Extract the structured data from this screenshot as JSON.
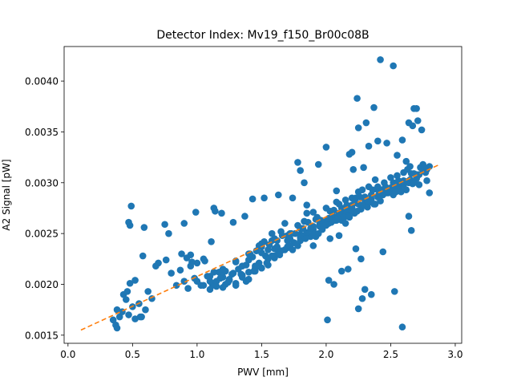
{
  "chart_data": {
    "type": "scatter",
    "title": "Detector Index: Mv19_f150_Br00c08B",
    "xlabel": "PWV [mm]",
    "ylabel": "A2 Signal [pW]",
    "xlim": [
      -0.03,
      3.05
    ],
    "ylim": [
      0.00142,
      0.00434
    ],
    "xticks": [
      0.0,
      0.5,
      1.0,
      1.5,
      2.0,
      2.5,
      3.0
    ],
    "xtick_labels": [
      "0.0",
      "0.5",
      "1.0",
      "1.5",
      "2.0",
      "2.5",
      "3.0"
    ],
    "yticks": [
      0.0015,
      0.002,
      0.0025,
      0.003,
      0.0035,
      0.004
    ],
    "ytick_labels": [
      "0.0015",
      "0.0020",
      "0.0025",
      "0.0030",
      "0.0035",
      "0.0040"
    ],
    "colors": {
      "points": "#1f77b4",
      "fit": "#ff7f0e"
    },
    "series": [
      {
        "name": "data",
        "x": [
          0.35,
          0.37,
          0.38,
          0.4,
          0.43,
          0.45,
          0.47,
          0.48,
          0.5,
          0.52,
          0.55,
          0.57,
          0.6,
          0.62,
          0.65,
          0.68,
          0.38,
          0.42,
          0.46,
          0.52,
          0.56,
          0.48,
          0.49,
          0.59,
          0.7,
          0.76,
          0.8,
          0.84,
          0.87,
          0.9,
          0.93,
          0.95,
          0.98,
          1.0,
          1.03,
          1.05,
          1.08,
          1.1,
          1.12,
          1.15,
          1.17,
          1.2,
          1.22,
          1.25,
          1.27,
          1.3,
          1.32,
          1.35,
          1.38,
          1.4,
          1.43,
          1.45,
          1.48,
          1.5,
          1.53,
          1.55,
          1.58,
          1.6,
          1.63,
          1.65,
          1.68,
          1.7,
          1.73,
          1.75,
          1.78,
          1.8,
          1.83,
          1.85,
          1.88,
          1.9,
          1.93,
          1.95,
          1.98,
          2.0,
          2.03,
          2.05,
          2.08,
          2.1,
          2.13,
          2.15,
          2.18,
          2.2,
          2.23,
          2.25,
          2.28,
          2.3,
          2.33,
          2.35,
          2.38,
          2.4,
          2.43,
          2.45,
          2.48,
          2.5,
          2.53,
          2.55,
          2.58,
          2.6,
          2.63,
          2.65,
          2.68,
          2.7,
          2.73,
          2.75,
          2.78,
          2.8,
          0.88,
          0.92,
          0.96,
          1.06,
          1.13,
          1.22,
          1.35,
          1.45,
          1.55,
          1.68,
          1.78,
          1.92,
          2.02,
          2.12,
          2.22,
          2.32,
          2.42,
          2.52,
          2.62,
          2.72,
          1.1,
          1.2,
          1.3,
          1.4,
          1.5,
          1.6,
          1.7,
          1.8,
          1.9,
          2.0,
          2.1,
          2.2,
          2.3,
          2.4,
          2.5,
          2.6,
          2.7,
          1.15,
          1.25,
          1.35,
          1.45,
          1.55,
          1.65,
          1.75,
          1.85,
          1.95,
          2.05,
          2.15,
          2.25,
          2.35,
          2.45,
          2.55,
          2.65,
          2.75,
          1.2,
          1.3,
          1.4,
          1.5,
          1.6,
          1.7,
          1.8,
          1.9,
          2.0,
          2.1,
          2.2,
          2.3,
          2.4,
          2.5,
          2.6,
          1.0,
          1.1,
          1.2,
          1.3,
          1.4,
          1.5,
          1.6,
          1.7,
          1.8,
          1.9,
          2.0,
          2.1,
          2.2,
          2.3,
          2.4,
          2.5,
          2.6,
          2.7,
          1.05,
          1.18,
          1.28,
          1.38,
          1.48,
          1.58,
          1.72,
          1.82,
          1.97,
          2.07,
          2.17,
          2.27,
          2.37,
          2.47,
          2.57,
          2.67,
          2.77,
          1.24,
          1.34,
          1.44,
          1.54,
          1.64,
          1.74,
          1.84,
          1.94,
          2.04,
          2.14,
          2.24,
          2.34,
          2.44,
          2.54,
          2.64,
          0.47,
          0.58,
          0.75,
          0.78,
          0.9,
          0.95,
          0.99,
          1.11,
          1.13,
          1.14,
          1.19,
          1.28,
          1.37,
          1.41,
          1.43,
          1.52,
          1.58,
          1.63,
          1.74,
          1.78,
          1.8,
          1.83,
          1.85,
          1.9,
          1.94,
          2.0,
          2.03,
          2.08,
          2.1,
          2.15,
          2.18,
          2.2,
          2.21,
          2.24,
          2.25,
          2.29,
          2.31,
          2.33,
          2.37,
          2.4,
          2.42,
          2.47,
          2.52,
          2.55,
          2.59,
          2.62,
          2.64,
          2.67,
          2.68,
          2.7,
          2.71,
          2.74,
          2.8,
          2.02,
          2.06,
          2.12,
          2.17,
          2.25,
          2.3,
          2.35,
          2.28,
          2.53,
          2.59,
          2.64,
          2.01,
          2.27,
          2.44,
          2.66,
          2.23,
          1.5,
          1.62,
          1.72,
          1.88,
          1.98,
          2.08,
          2.18,
          2.28,
          2.38,
          2.48,
          2.58,
          2.68,
          2.78,
          1.52,
          1.62,
          1.72,
          1.82,
          1.92,
          2.02,
          2.12,
          2.22,
          2.32,
          2.42,
          2.52,
          2.62,
          2.72,
          1.46,
          1.56,
          1.66,
          1.76,
          1.86,
          1.96,
          2.06,
          2.16,
          2.26,
          2.36,
          2.46,
          2.56,
          2.66,
          2.76
        ],
        "y": [
          0.00165,
          0.0016,
          0.00175,
          0.00168,
          0.0019,
          0.00185,
          0.0017,
          0.00201,
          0.00178,
          0.00204,
          0.00181,
          0.00168,
          0.00175,
          0.00193,
          0.00186,
          0.00218,
          0.00157,
          0.00173,
          0.00193,
          0.00166,
          0.00168,
          0.00258,
          0.00277,
          0.00256,
          0.00221,
          0.00224,
          0.00211,
          0.00199,
          0.00214,
          0.00203,
          0.00196,
          0.00218,
          0.00206,
          0.00221,
          0.00199,
          0.00225,
          0.00208,
          0.00195,
          0.00199,
          0.00203,
          0.00212,
          0.00207,
          0.00213,
          0.00205,
          0.0021,
          0.00222,
          0.00215,
          0.00218,
          0.00203,
          0.0023,
          0.00227,
          0.00216,
          0.00238,
          0.00237,
          0.00228,
          0.00234,
          0.0025,
          0.00245,
          0.00231,
          0.00252,
          0.0026,
          0.00248,
          0.0025,
          0.00241,
          0.00258,
          0.00249,
          0.00262,
          0.0027,
          0.00247,
          0.00271,
          0.00266,
          0.00259,
          0.0026,
          0.00275,
          0.00272,
          0.00268,
          0.00281,
          0.00279,
          0.0027,
          0.00283,
          0.00274,
          0.00285,
          0.00285,
          0.00291,
          0.00293,
          0.00286,
          0.00296,
          0.00288,
          0.00303,
          0.00296,
          0.00293,
          0.003,
          0.00291,
          0.00305,
          0.00297,
          0.00307,
          0.003,
          0.0031,
          0.00313,
          0.00316,
          0.00309,
          0.00304,
          0.00315,
          0.00318,
          0.00313,
          0.00316,
          0.0023,
          0.00226,
          0.00222,
          0.00223,
          0.00212,
          0.002,
          0.00207,
          0.00218,
          0.00225,
          0.00234,
          0.00238,
          0.00247,
          0.0026,
          0.00263,
          0.0027,
          0.00276,
          0.00282,
          0.00288,
          0.00293,
          0.00298,
          0.00203,
          0.00197,
          0.00201,
          0.00212,
          0.00216,
          0.00228,
          0.00237,
          0.00246,
          0.00254,
          0.00262,
          0.00268,
          0.00275,
          0.00283,
          0.00287,
          0.00293,
          0.00302,
          0.00308,
          0.00198,
          0.00204,
          0.00209,
          0.00213,
          0.00219,
          0.00233,
          0.00241,
          0.00251,
          0.00257,
          0.00266,
          0.00273,
          0.00279,
          0.00284,
          0.0029,
          0.00296,
          0.00303,
          0.00312,
          0.00212,
          0.00199,
          0.00205,
          0.00216,
          0.00226,
          0.00236,
          0.00243,
          0.0025,
          0.00258,
          0.00265,
          0.00272,
          0.00278,
          0.00286,
          0.00292,
          0.00298,
          0.00203,
          0.00208,
          0.00215,
          0.00223,
          0.00224,
          0.00231,
          0.00235,
          0.00243,
          0.00255,
          0.00257,
          0.00261,
          0.0027,
          0.00278,
          0.00285,
          0.00293,
          0.00295,
          0.00301,
          0.00305,
          0.00199,
          0.00206,
          0.00211,
          0.00219,
          0.00221,
          0.00228,
          0.00238,
          0.00248,
          0.00254,
          0.00263,
          0.00268,
          0.00274,
          0.00279,
          0.0029,
          0.00294,
          0.00299,
          0.0031,
          0.00202,
          0.0021,
          0.00213,
          0.00221,
          0.00229,
          0.00234,
          0.00245,
          0.0025,
          0.00261,
          0.00266,
          0.00272,
          0.00281,
          0.00288,
          0.00291,
          0.003,
          0.00261,
          0.00228,
          0.00259,
          0.0025,
          0.0026,
          0.00229,
          0.00271,
          0.00242,
          0.00275,
          0.00272,
          0.0027,
          0.00261,
          0.00267,
          0.0023,
          0.00284,
          0.00285,
          0.00243,
          0.00288,
          0.00285,
          0.0032,
          0.00312,
          0.003,
          0.00278,
          0.00238,
          0.00318,
          0.00335,
          0.00245,
          0.00292,
          0.00248,
          0.0026,
          0.00328,
          0.0033,
          0.00313,
          0.00383,
          0.00354,
          0.00315,
          0.00359,
          0.00336,
          0.00374,
          0.00341,
          0.00421,
          0.00339,
          0.00415,
          0.00327,
          0.00342,
          0.00321,
          0.00359,
          0.00356,
          0.00373,
          0.00373,
          0.00361,
          0.00352,
          0.0029,
          0.00204,
          0.002,
          0.00213,
          0.00215,
          0.00176,
          0.00195,
          0.0019,
          0.00186,
          0.00193,
          0.00158,
          0.00267,
          0.00165,
          0.00225,
          0.00232,
          0.00253,
          0.00235,
          0.0024,
          0.00237,
          0.00245,
          0.00255,
          0.00258,
          0.00263,
          0.00266,
          0.00278,
          0.00279,
          0.0029,
          0.00291,
          0.003,
          0.00302,
          0.00242,
          0.00243,
          0.0025,
          0.00255,
          0.00264,
          0.00265,
          0.00275,
          0.0028,
          0.00282,
          0.00291,
          0.003,
          0.00301,
          0.00308,
          0.00233,
          0.00239,
          0.00248,
          0.0025,
          0.00261,
          0.00263,
          0.00273,
          0.00278,
          0.00286,
          0.00293,
          0.00296,
          0.00302,
          0.00309,
          0.00315
        ]
      },
      {
        "name": "fit",
        "type": "line",
        "x": [
          0.1,
          2.88
        ],
        "y": [
          0.00155,
          0.00318
        ]
      }
    ]
  }
}
